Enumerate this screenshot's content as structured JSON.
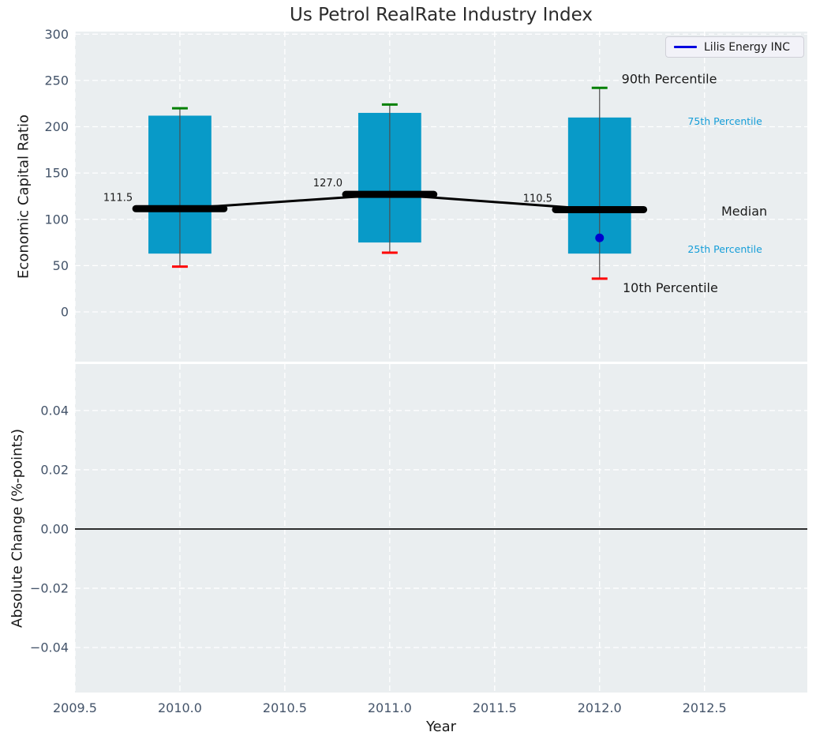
{
  "title": "Us Petrol RealRate Industry Index",
  "legend": {
    "label": "Lilis Energy INC",
    "line_color": "#0000e0"
  },
  "colors": {
    "figure_bg": "#ffffff",
    "plot_bg": "#eaeef0",
    "grid": "#ffffff",
    "tick": "#44546a",
    "box_fill": "#089ac8",
    "whisker": "#4d4d4d",
    "p90_cap": "#008000",
    "p10_cap": "#ff0000",
    "median": "#000000",
    "marker": "#0000cd",
    "annotation_dark": "#1a1a1a",
    "annotation_cyan": "#149dd8",
    "zero_line": "#000000"
  },
  "chart_data": [
    {
      "type": "box",
      "title": "Us Petrol RealRate Industry Index",
      "xlabel": "",
      "ylabel": "Economic Capital Ratio",
      "grid": true,
      "legend_position": "upper right",
      "legend_entries": [
        "Lilis Energy INC"
      ],
      "xlim": [
        2009.5,
        2012.99
      ],
      "ylim": [
        -53.7,
        302.8
      ],
      "xticks": {
        "values": [
          2009.5,
          2010.0,
          2010.5,
          2011.0,
          2011.5,
          2012.0,
          2012.5
        ],
        "labels": [
          "2009.5",
          "2010.0",
          "2010.5",
          "2011.0",
          "2011.5",
          "2012.0",
          "2012.5"
        ],
        "show_labels": false
      },
      "yticks": {
        "values": [
          0,
          50,
          100,
          150,
          200,
          250,
          300
        ],
        "labels": [
          "0",
          "50",
          "100",
          "150",
          "200",
          "250",
          "300"
        ]
      },
      "boxes": [
        {
          "x": 2010,
          "p90": 220,
          "q3": 212,
          "median": 111.5,
          "q1": 63,
          "p10": 49,
          "label": "111.5"
        },
        {
          "x": 2011,
          "p90": 224,
          "q3": 215,
          "median": 127.0,
          "q1": 75,
          "p10": 64,
          "label": "127.0"
        },
        {
          "x": 2012,
          "p90": 242,
          "q3": 210,
          "median": 110.5,
          "q1": 63,
          "p10": 36,
          "label": "110.5"
        }
      ],
      "median_line": {
        "x": [
          2010,
          2011,
          2012
        ],
        "y": [
          111.5,
          127.0,
          110.5
        ]
      },
      "marker": {
        "name": "Lilis Energy INC",
        "x": 2012,
        "y": 80
      },
      "annotations": [
        {
          "id": "90th-percentile",
          "text": "90th Percentile",
          "x": 2012.105,
          "y": 252,
          "color": "dark",
          "size": "large"
        },
        {
          "id": "75th-percentile",
          "text": "75th Percentile",
          "x": 2012.42,
          "y": 206,
          "color": "cyan",
          "size": "small"
        },
        {
          "id": "median",
          "text": "Median",
          "x": 2012.58,
          "y": 109,
          "color": "dark",
          "size": "large"
        },
        {
          "id": "25th-percentile",
          "text": "25th Percentile",
          "x": 2012.42,
          "y": 68,
          "color": "cyan",
          "size": "small"
        },
        {
          "id": "10th-percentile",
          "text": "10th Percentile",
          "x": 2012.11,
          "y": 26.5,
          "color": "dark",
          "size": "large"
        }
      ]
    },
    {
      "type": "line",
      "xlabel": "Year",
      "ylabel": "Absolute Change (%-points)",
      "grid": true,
      "xlim": [
        2009.5,
        2012.99
      ],
      "ylim": [
        -0.0552,
        0.0557
      ],
      "yticks": {
        "values": [
          0.04,
          0.02,
          0,
          -0.02,
          -0.04
        ],
        "labels": [
          "0.04",
          "0.02",
          "0.00",
          "−0.02",
          "−0.04"
        ]
      },
      "zero_line": 0.0,
      "series": []
    }
  ]
}
